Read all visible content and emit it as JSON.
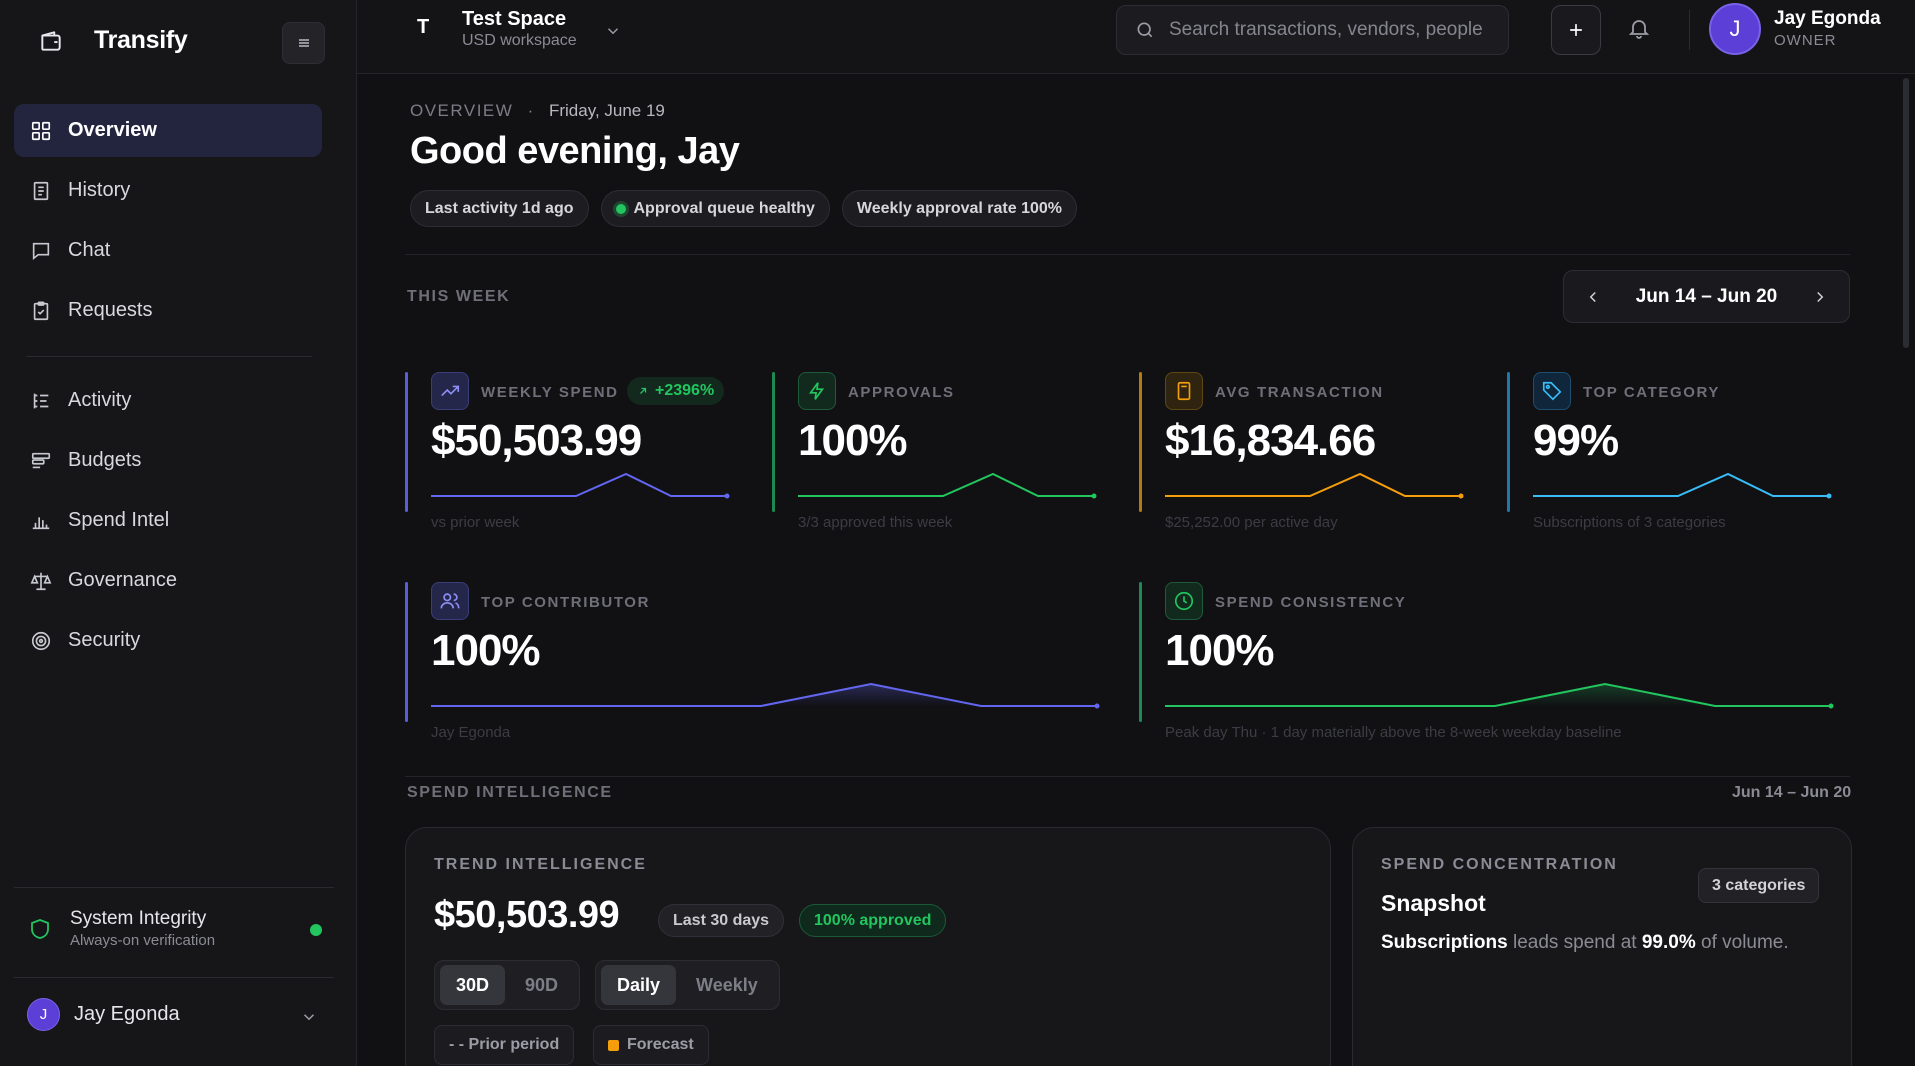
{
  "app": {
    "name": "Transify"
  },
  "colors": {
    "accent": "#6366f1",
    "green": "#22c55e",
    "orange": "#f59e0b",
    "blue": "#38bdf8"
  },
  "sidebar": {
    "primary": [
      {
        "label": "Overview",
        "icon": "grid-icon",
        "active": true
      },
      {
        "label": "History",
        "icon": "receipt-icon"
      },
      {
        "label": "Chat",
        "icon": "chat-icon"
      },
      {
        "label": "Requests",
        "icon": "clipboard-icon"
      }
    ],
    "secondary": [
      {
        "label": "Activity",
        "icon": "activity-list-icon"
      },
      {
        "label": "Budgets",
        "icon": "budget-icon"
      },
      {
        "label": "Spend Intel",
        "icon": "bar-chart-icon"
      },
      {
        "label": "Governance",
        "icon": "scale-icon"
      },
      {
        "label": "Security",
        "icon": "target-icon"
      }
    ],
    "system": {
      "title": "System Integrity",
      "subtitle": "Always-on verification"
    },
    "user": {
      "name": "Jay Egonda",
      "initial": "J"
    }
  },
  "topbar": {
    "workspace": {
      "initial": "T",
      "name": "Test Space",
      "subtitle": "USD workspace"
    },
    "search_placeholder": "Search transactions, vendors, people",
    "user": {
      "initial": "J",
      "name": "Jay Egonda",
      "role": "OWNER"
    }
  },
  "header": {
    "crumb": "OVERVIEW",
    "separator": "·",
    "date": "Friday, June 19",
    "greeting": "Good evening, Jay",
    "chips": [
      "Last activity 1d ago",
      "Approval queue healthy",
      "Weekly approval rate 100%"
    ]
  },
  "this_week": {
    "label": "THIS WEEK",
    "range": "Jun 14 – Jun 20",
    "metrics": [
      {
        "label": "WEEKLY SPEND",
        "badge": "+2396%",
        "value": "$50,503.99",
        "sub": "vs prior week",
        "icon": "trend-up-icon"
      },
      {
        "label": "APPROVALS",
        "value": "100%",
        "sub": "3/3 approved this week",
        "icon": "bolt-icon"
      },
      {
        "label": "AVG TRANSACTION",
        "value": "$16,834.66",
        "sub": "$25,252.00 per active day",
        "icon": "calculator-icon"
      },
      {
        "label": "TOP CATEGORY",
        "value": "99%",
        "sub": "Subscriptions of 3 categories",
        "icon": "tag-icon"
      },
      {
        "label": "TOP CONTRIBUTOR",
        "value": "100%",
        "sub": "Jay Egonda",
        "icon": "users-icon"
      },
      {
        "label": "SPEND CONSISTENCY",
        "value": "100%",
        "sub": "Peak day Thu · 1 day materially above the 8-week weekday baseline",
        "icon": "clock-icon"
      }
    ]
  },
  "spend_intel": {
    "label": "SPEND INTELLIGENCE",
    "range": "Jun 14 – Jun 20",
    "trend": {
      "label": "TREND INTELLIGENCE",
      "value": "$50,503.99",
      "period_pill": "Last 30 days",
      "approved_pill": "100% approved",
      "range_options": [
        "30D",
        "90D"
      ],
      "granularity_options": [
        "Daily",
        "Weekly"
      ],
      "legend": [
        "- - Prior period",
        "Forecast"
      ]
    },
    "concentration": {
      "label": "SPEND CONCENTRATION",
      "categories_pill": "3 categories",
      "title": "Snapshot",
      "lead_category": "Subscriptions",
      "lead_text": " leads spend at ",
      "lead_share": "99.0%",
      "lead_suffix": " of volume."
    }
  }
}
